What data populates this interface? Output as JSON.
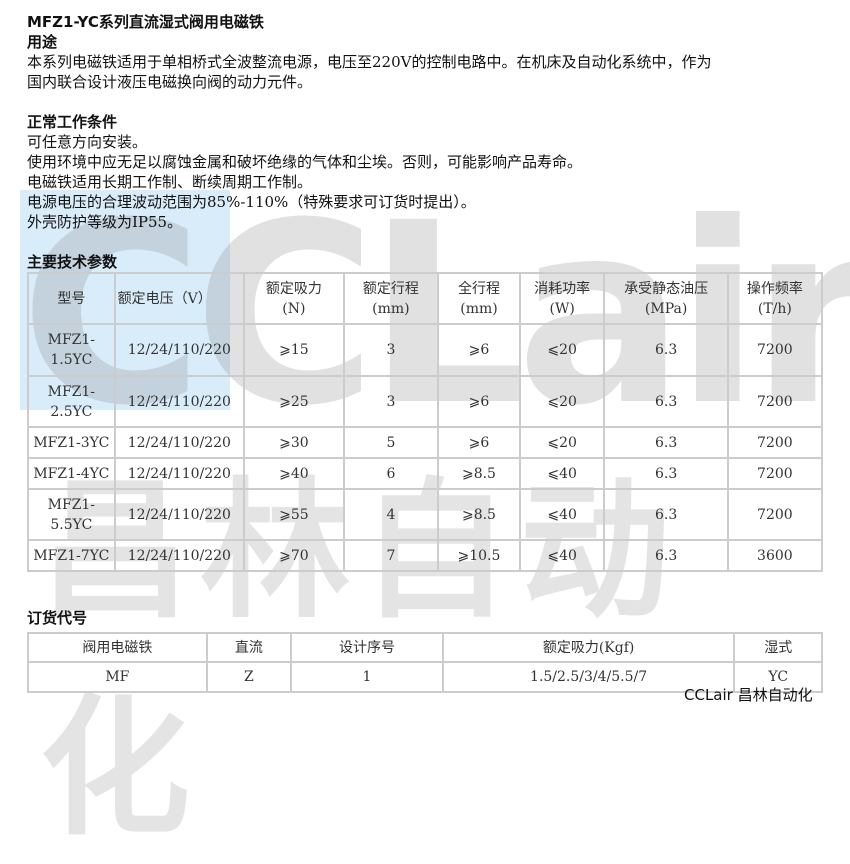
{
  "title": "MFZ1-YC系列直流湿式阀用电磁铁",
  "usage": {
    "heading": "用途",
    "lines": [
      "本系列电磁铁适用于单相桥式全波整流电源，电压至220V的控制电路中。在机床及自动化系统中，作为",
      "国内联合设计液压电磁换向阀的动力元件。"
    ]
  },
  "conditions": {
    "heading": "正常工作条件",
    "lines": [
      "可任意方向安装。",
      "使用环境中应无足以腐蚀金属和破坏绝缘的气体和尘埃。否则，可能影响产品寿命。",
      "电磁铁适用长期工作制、断续周期工作制。",
      "电源电压的合理波动范围为85%-110%（特殊要求可订货时提出）。",
      "外壳防护等级为IP55。"
    ]
  },
  "specs": {
    "heading": "主要技术参数",
    "headers": [
      [
        "型号",
        ""
      ],
      [
        "额定电压（V）",
        ""
      ],
      [
        "额定吸力",
        "(N)"
      ],
      [
        "额定行程",
        "(mm)"
      ],
      [
        "全行程",
        "(mm)"
      ],
      [
        "消耗功率",
        "(W)"
      ],
      [
        "承受静态油压",
        "(MPa)"
      ],
      [
        "操作频率",
        "(T/h)"
      ]
    ],
    "rows": [
      [
        "MFZ1-\n1.5YC",
        "12/24/110/220",
        "⩾15",
        "3",
        "⩾6",
        "⩽20",
        "6.3",
        "7200"
      ],
      [
        "MFZ1-\n2.5YC",
        "12/24/110/220",
        "⩾25",
        "3",
        "⩾6",
        "⩽20",
        "6.3",
        "7200"
      ],
      [
        "MFZ1-3YC",
        "12/24/110/220",
        "⩾30",
        "5",
        "⩾6",
        "⩽20",
        "6.3",
        "7200"
      ],
      [
        "MFZ1-4YC",
        "12/24/110/220",
        "⩾40",
        "6",
        "⩾8.5",
        "⩽40",
        "6.3",
        "7200"
      ],
      [
        "MFZ1-\n5.5YC",
        "12/24/110/220",
        "⩾55",
        "4",
        "⩾8.5",
        "⩽40",
        "6.3",
        "7200"
      ],
      [
        "MFZ1-7YC",
        "12/24/110/220",
        "⩾70",
        "7",
        "⩾10.5",
        "⩽40",
        "6.3",
        "3600"
      ]
    ]
  },
  "order": {
    "heading": "订货代号",
    "headers": [
      "阀用电磁铁",
      "直流",
      "设计序号",
      "额定吸力(Kgf)",
      "湿式"
    ],
    "values": [
      "MF",
      "Z",
      "1",
      "1.5/2.5/3/4/5.5/7",
      "YC"
    ]
  },
  "watermark": "CCLair 昌林自动化",
  "brand": "CCLair 昌林自动化"
}
